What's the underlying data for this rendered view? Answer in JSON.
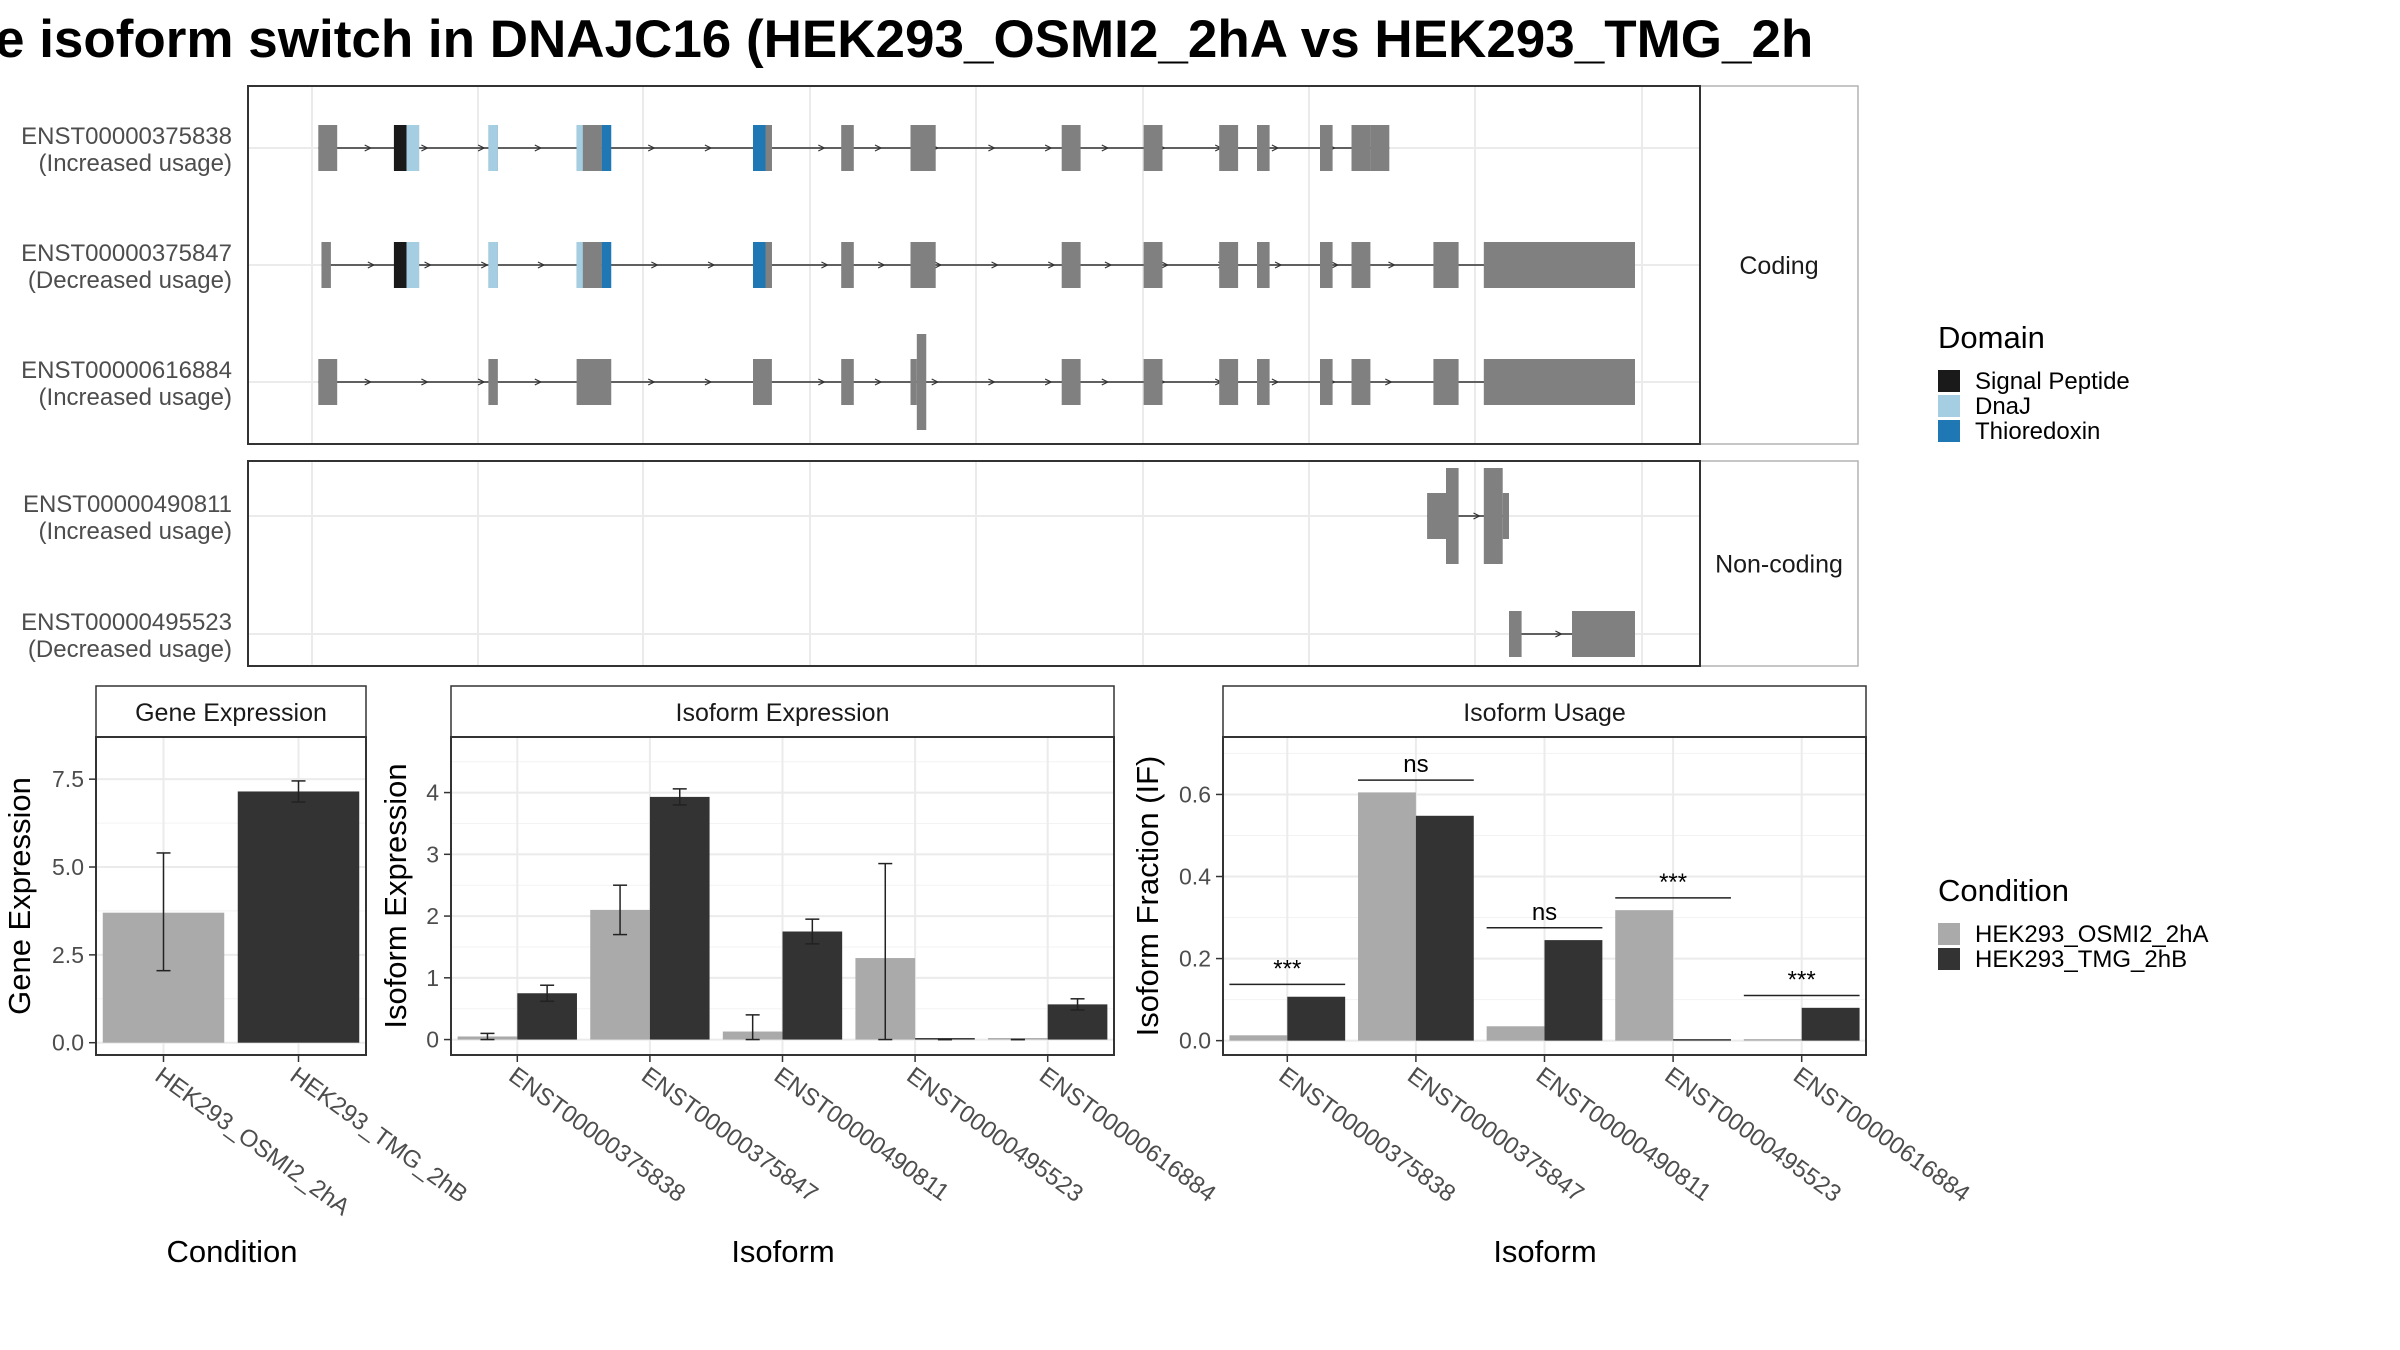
{
  "title": "e isoform switch in DNAJC16 (HEK293_OSMI2_2hA vs HEK293_TMG_2h",
  "colors": {
    "exon": "#808080",
    "signal_peptide": "#1a1a1a",
    "dnaj": "#a6cee3",
    "thioredoxin": "#1f78b4",
    "cond_a": "#aaaaaa",
    "cond_b": "#333333",
    "grid": "#ebebeb",
    "strip": "#ffffff"
  },
  "transcript_panel": {
    "coding_label": "Coding",
    "noncoding_label": "Non-coding",
    "coding": [
      {
        "id": "ENST00000375838",
        "usage": "(Increased usage)",
        "exons": [
          [
            1,
            4
          ],
          [
            15,
            17
          ],
          [
            28,
            29.5
          ],
          [
            42,
            46
          ],
          [
            70,
            73
          ],
          [
            84,
            86
          ],
          [
            95,
            99
          ],
          [
            119,
            122
          ],
          [
            132,
            135
          ],
          [
            144,
            147
          ],
          [
            150,
            152
          ],
          [
            160,
            162
          ],
          [
            165,
            168
          ]
        ],
        "utr": [
          [
            168,
            171
          ]
        ],
        "domains": [
          [
            13,
            15,
            "signal_peptide"
          ],
          [
            15,
            17,
            "dnaj"
          ],
          [
            28,
            29.5,
            "dnaj"
          ],
          [
            42,
            43,
            "dnaj"
          ],
          [
            43,
            46,
            "exon"
          ],
          [
            46,
            47.5,
            "thioredoxin"
          ],
          [
            70,
            72,
            "thioredoxin"
          ],
          [
            72,
            73,
            "exon"
          ]
        ]
      },
      {
        "id": "ENST00000375847",
        "usage": "(Decreased usage)",
        "exons": [
          [
            1.5,
            3
          ],
          [
            15,
            17
          ],
          [
            28,
            29.5
          ],
          [
            42,
            46
          ],
          [
            70,
            73
          ],
          [
            84,
            86
          ],
          [
            95,
            99
          ],
          [
            119,
            122
          ],
          [
            132,
            135
          ],
          [
            144,
            147
          ],
          [
            150,
            152
          ],
          [
            160,
            162
          ],
          [
            165,
            168
          ],
          [
            178,
            182
          ],
          [
            186,
            190
          ]
        ],
        "utr": [
          [
            190,
            210
          ]
        ],
        "domains": [
          [
            13,
            15,
            "signal_peptide"
          ],
          [
            15,
            17,
            "dnaj"
          ],
          [
            28,
            29.5,
            "dnaj"
          ],
          [
            42,
            43,
            "dnaj"
          ],
          [
            43,
            46,
            "exon"
          ],
          [
            46,
            47.5,
            "thioredoxin"
          ],
          [
            70,
            72,
            "thioredoxin"
          ],
          [
            72,
            73,
            "exon"
          ]
        ]
      },
      {
        "id": "ENST00000616884",
        "usage": "(Increased usage)",
        "exons": [
          [
            1,
            4
          ],
          [
            28,
            29.5
          ],
          [
            42,
            47.5
          ],
          [
            70,
            73
          ],
          [
            84,
            86
          ],
          [
            95,
            96
          ],
          [
            96,
            97.5
          ],
          [
            119,
            122
          ],
          [
            132,
            135
          ],
          [
            144,
            147
          ],
          [
            150,
            152
          ],
          [
            160,
            162
          ],
          [
            165,
            168
          ],
          [
            178,
            182
          ],
          [
            186,
            190
          ]
        ],
        "utr": [
          [
            190,
            210
          ]
        ],
        "tall": [
          [
            96,
            97.5
          ]
        ],
        "domains": []
      }
    ],
    "noncoding": [
      {
        "id": "ENST00000490811",
        "usage": "(Increased usage)",
        "exons": [
          [
            177,
            180
          ],
          [
            180,
            182
          ],
          [
            186,
            189
          ],
          [
            189,
            190
          ]
        ],
        "tall": [
          [
            180,
            182
          ],
          [
            186,
            189
          ]
        ]
      },
      {
        "id": "ENST00000495523",
        "usage": "(Decreased usage)",
        "exons": [
          [
            190,
            192
          ],
          [
            200,
            210
          ]
        ]
      }
    ]
  },
  "legends": {
    "domain_title": "Domain",
    "domain_items": [
      {
        "label": "Signal Peptide",
        "color": "#1a1a1a"
      },
      {
        "label": "DnaJ",
        "color": "#a6cee3"
      },
      {
        "label": "Thioredoxin",
        "color": "#1f78b4"
      }
    ],
    "condition_title": "Condition",
    "condition_items": [
      {
        "label": "HEK293_OSMI2_2hA",
        "color": "#aaaaaa"
      },
      {
        "label": "HEK293_TMG_2hB",
        "color": "#333333"
      }
    ]
  },
  "chart_data": [
    {
      "type": "bar",
      "title": "Gene Expression",
      "xlabel": "Condition",
      "ylabel": "Gene Expression",
      "categories": [
        "HEK293_OSMI2_2hA",
        "HEK293_TMG_2hB"
      ],
      "values": [
        3.7,
        7.15
      ],
      "errors": [
        [
          2.05,
          5.4
        ],
        [
          6.85,
          7.45
        ]
      ],
      "ylim": [
        -0.35,
        8.7
      ],
      "yticks": [
        "0.0",
        "2.5",
        "5.0",
        "7.5"
      ],
      "grid": true
    },
    {
      "type": "bar",
      "title": "Isoform Expression",
      "xlabel": "Isoform",
      "ylabel": "Isoform Expression",
      "categories": [
        "ENST00000375838",
        "ENST00000375847",
        "ENST00000490811",
        "ENST00000495523",
        "ENST00000616884"
      ],
      "series": [
        {
          "name": "HEK293_OSMI2_2hA",
          "values": [
            0.05,
            2.1,
            0.13,
            1.32,
            0.0
          ],
          "errors": [
            [
              0.0,
              0.1
            ],
            [
              1.7,
              2.5
            ],
            [
              0.0,
              0.4
            ],
            [
              0.0,
              2.85
            ],
            [
              0.0,
              0.0
            ]
          ]
        },
        {
          "name": "HEK293_TMG_2hB",
          "values": [
            0.75,
            3.93,
            1.75,
            0.0,
            0.57
          ],
          "errors": [
            [
              0.62,
              0.88
            ],
            [
              3.8,
              4.06
            ],
            [
              1.55,
              1.95
            ],
            [
              0.0,
              0.0
            ],
            [
              0.48,
              0.66
            ]
          ]
        }
      ],
      "ylim": [
        -0.25,
        4.9
      ],
      "yticks": [
        "0",
        "1",
        "2",
        "3",
        "4"
      ],
      "grid": true
    },
    {
      "type": "bar",
      "title": "Isoform Usage",
      "xlabel": "Isoform",
      "ylabel": "Isoform Fraction (IF)",
      "categories": [
        "ENST00000375838",
        "ENST00000375847",
        "ENST00000490811",
        "ENST00000495523",
        "ENST00000616884"
      ],
      "series": [
        {
          "name": "HEK293_OSMI2_2hA",
          "values": [
            0.013,
            0.605,
            0.035,
            0.318,
            0.0
          ]
        },
        {
          "name": "HEK293_TMG_2hB",
          "values": [
            0.107,
            0.548,
            0.245,
            0.0,
            0.08
          ]
        }
      ],
      "significance": [
        {
          "label": "***",
          "y": 0.137
        },
        {
          "label": "ns",
          "y": 0.635
        },
        {
          "label": "ns",
          "y": 0.275
        },
        {
          "label": "***",
          "y": 0.348
        },
        {
          "label": "***",
          "y": 0.11
        }
      ],
      "ylim": [
        -0.035,
        0.74
      ],
      "yticks": [
        "0.0",
        "0.2",
        "0.4",
        "0.6"
      ],
      "grid": true
    }
  ]
}
